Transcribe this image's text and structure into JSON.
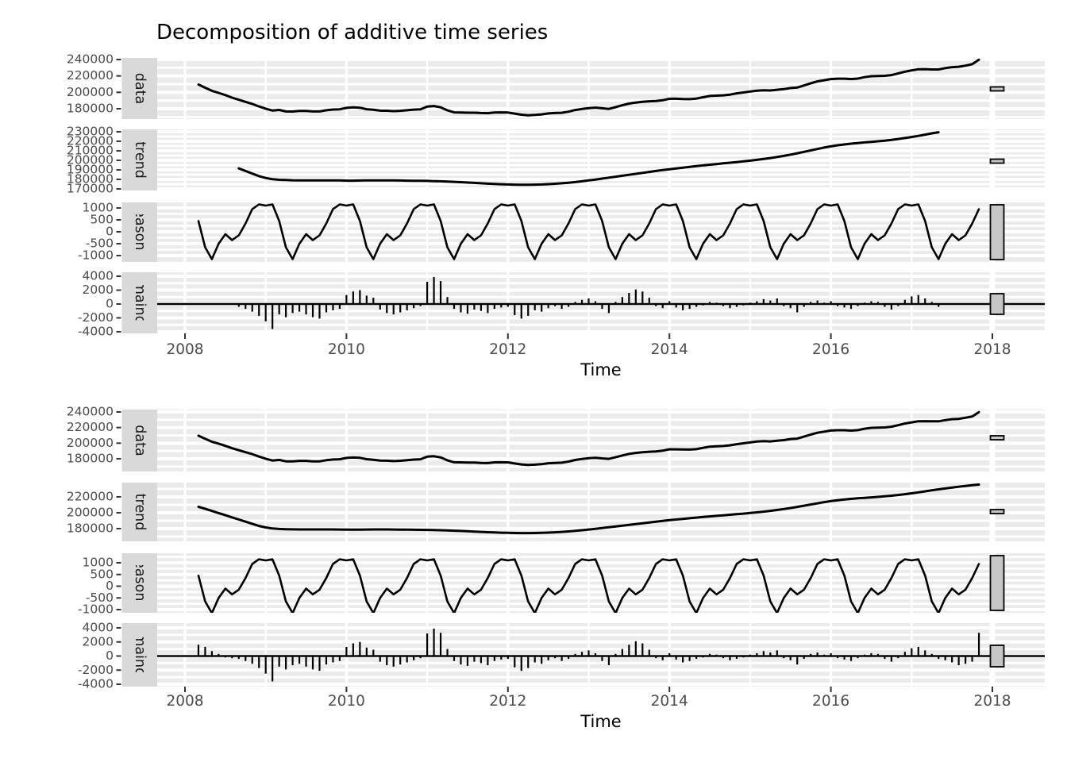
{
  "title": "Decomposition of additive time series",
  "x_axis_label": "Time",
  "chart_data": {
    "type": "line",
    "title": "Decomposition of additive time series",
    "xlabel": "Time",
    "x_ticks": [
      2008,
      2010,
      2012,
      2014,
      2016,
      2018
    ],
    "x_axis_range": [
      2007.65,
      2018.65
    ],
    "facets": [
      "data",
      "trend",
      "seasonal",
      "remainder"
    ],
    "frequency": "monthly",
    "x_start_decimal_year": 2008.1667,
    "n_points": 117,
    "grid": "on",
    "seasonal_monthly_pattern": {
      "Jan": 1100,
      "Feb": 1150,
      "Mar": 450,
      "Apr": -650,
      "May": -1150,
      "Jun": -500,
      "Jul": -100,
      "Aug": -350,
      "Sep": -150,
      "Oct": 350,
      "Nov": 950,
      "Dec": 1150
    },
    "trend": [
      207500,
      205000,
      202300,
      199600,
      196900,
      194200,
      191500,
      188800,
      186100,
      183400,
      181500,
      180200,
      179600,
      179300,
      179100,
      179000,
      179000,
      179000,
      179000,
      179000,
      179000,
      178900,
      178700,
      178700,
      178800,
      178900,
      179000,
      179000,
      179000,
      178900,
      178800,
      178700,
      178600,
      178500,
      178400,
      178200,
      178000,
      177700,
      177400,
      177100,
      176700,
      176300,
      175900,
      175500,
      175200,
      174900,
      174700,
      174500,
      174400,
      174400,
      174500,
      174700,
      175000,
      175400,
      175900,
      176500,
      177200,
      178000,
      178900,
      179800,
      180800,
      181800,
      182800,
      183800,
      184800,
      185800,
      186800,
      187800,
      188800,
      189800,
      190700,
      191500,
      192300,
      193100,
      193900,
      194700,
      195400,
      196100,
      196800,
      197500,
      198200,
      198900,
      199700,
      200500,
      201400,
      202400,
      203500,
      204700,
      206000,
      207400,
      208900,
      210400,
      211900,
      213400,
      214700,
      215800,
      216700,
      217500,
      218200,
      218800,
      219400,
      220000,
      220700,
      221500,
      222400,
      223400,
      224500,
      225700,
      227000,
      228300,
      229500,
      230600,
      231700,
      232800,
      233800,
      234700,
      235500
    ],
    "remainder": [
      1600,
      1300,
      700,
      300,
      -200,
      -300,
      -400,
      -700,
      -1100,
      -1700,
      -2500,
      -3600,
      -1500,
      -1900,
      -1300,
      -1100,
      -1500,
      -1900,
      -2100,
      -1200,
      -900,
      -700,
      1300,
      1800,
      2000,
      1200,
      900,
      -800,
      -1300,
      -1500,
      -1200,
      -900,
      -600,
      -300,
      3200,
      3900,
      3300,
      1000,
      -700,
      -1200,
      -1400,
      -800,
      -1000,
      -1300,
      -700,
      -500,
      -400,
      -1600,
      -2100,
      -1700,
      -900,
      -1100,
      -600,
      -300,
      -700,
      -400,
      300,
      600,
      800,
      400,
      -700,
      -1300,
      300,
      1000,
      1600,
      2100,
      1800,
      900,
      -300,
      -600,
      400,
      -500,
      -900,
      -700,
      -400,
      -200,
      300,
      200,
      -300,
      -600,
      -400,
      -200,
      200,
      400,
      700,
      500,
      800,
      -300,
      -600,
      -1200,
      -400,
      300,
      500,
      200,
      400,
      -300,
      -500,
      -700,
      -300,
      200,
      400,
      300,
      -400,
      -800,
      -300,
      600,
      1100,
      1300,
      800,
      300,
      -400,
      -600,
      -900,
      -1300,
      -1100,
      -800,
      3300
    ],
    "observed_formula": "trend + seasonal + remainder",
    "plots": [
      {
        "name": "top",
        "trend_index_range": [
          6,
          110
        ],
        "remainder_index_range": [
          6,
          110
        ],
        "y_ticks": {
          "data": [
            240000,
            220000,
            200000,
            180000
          ],
          "trend": [
            230000,
            220000,
            210000,
            200000,
            190000,
            180000,
            170000
          ],
          "seasonal": [
            1000,
            500,
            0,
            -500,
            -1000
          ],
          "remainder": [
            4000,
            2000,
            0,
            -2000,
            -4000
          ]
        }
      },
      {
        "name": "bottom",
        "trend_index_range": [
          0,
          116
        ],
        "remainder_index_range": [
          0,
          116
        ],
        "y_ticks": {
          "data": [
            240000,
            220000,
            200000,
            180000
          ],
          "trend": [
            220000,
            200000,
            180000
          ],
          "seasonal": [
            1000,
            500,
            0,
            -500,
            -1000
          ],
          "remainder": [
            4000,
            2000,
            0,
            -2000,
            -4000
          ]
        }
      }
    ],
    "colors": {
      "panel_background": "#ebebeb",
      "gridline": "#ffffff",
      "strip_background": "#d9d9d9",
      "strip_text": "#1a1a1a",
      "series_line": "#000000",
      "range_bar_fill": "#c6c6c6",
      "range_bar_border": "#000000",
      "tick_label": "#4d4d4d",
      "tick_mark": "#333333",
      "title_text": "#000000"
    }
  }
}
